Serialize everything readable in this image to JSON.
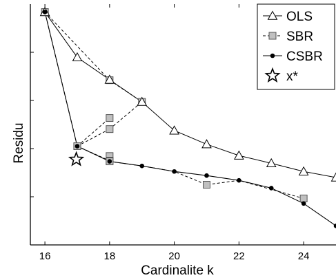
{
  "chart_data": {
    "type": "line",
    "title": "",
    "xlabel": "Cardinalite k",
    "ylabel": "Residu",
    "xlim": [
      15.55,
      25.0
    ],
    "ylim": [
      0,
      100
    ],
    "x_ticks": [
      16,
      18,
      20,
      22,
      24
    ],
    "y_ticks": [
      20,
      40,
      60,
      80
    ],
    "y_tick_labels_shown": false,
    "grid": false,
    "legend": "top-right",
    "series": [
      {
        "name": "OLS",
        "marker": "triangle-open",
        "line_style": "solid",
        "color": "#000000",
        "x": [
          16,
          17,
          18,
          19,
          20,
          21,
          22,
          23,
          24,
          25
        ],
        "y": [
          96.7,
          77.9,
          68.6,
          59.4,
          47.5,
          41.8,
          37.1,
          33.9,
          30.5,
          28.0
        ]
      },
      {
        "name": "SBR",
        "marker": "square",
        "line_style": "dashed",
        "color": "#999999",
        "x": [
          16,
          17,
          18,
          18,
          18,
          18,
          19,
          17,
          18,
          18,
          21,
          24
        ],
        "y": [
          96.7,
          41.0,
          68.4,
          52.7,
          48.1,
          36.9,
          59.4,
          41.0,
          35.0,
          34.7,
          25.0,
          19.3
        ],
        "draw_order_path": true
      },
      {
        "name": "CSBR",
        "marker": "circle-filled",
        "line_style": "solid",
        "color": "#000000",
        "x": [
          16,
          17,
          18,
          19,
          20,
          21,
          22,
          23,
          24,
          25
        ],
        "y": [
          96.7,
          41.0,
          34.7,
          32.8,
          30.5,
          28.8,
          26.8,
          23.6,
          17.2,
          7.9
        ]
      },
      {
        "name": "x*",
        "marker": "star-open",
        "line_style": "none",
        "color": "#000000",
        "x": [
          16.97
        ],
        "y": [
          35.5
        ]
      }
    ],
    "sbr_segments": [
      [
        [
          16,
          96.7
        ],
        [
          17,
          41.0
        ]
      ],
      [
        [
          17,
          41.0
        ],
        [
          18,
          35.0
        ]
      ],
      [
        [
          17,
          41.0
        ],
        [
          18,
          48.1
        ]
      ],
      [
        [
          17,
          41.0
        ],
        [
          18,
          52.7
        ]
      ],
      [
        [
          16,
          96.7
        ],
        [
          18,
          68.4
        ]
      ],
      [
        [
          18,
          68.4
        ],
        [
          19,
          59.4
        ]
      ],
      [
        [
          18,
          48.1
        ],
        [
          19,
          59.4
        ]
      ],
      [
        [
          18,
          34.7
        ],
        [
          19,
          32.8
        ],
        [
          20,
          30.5
        ],
        [
          21,
          25.0
        ],
        [
          22,
          26.8
        ],
        [
          24,
          19.3
        ]
      ]
    ]
  }
}
